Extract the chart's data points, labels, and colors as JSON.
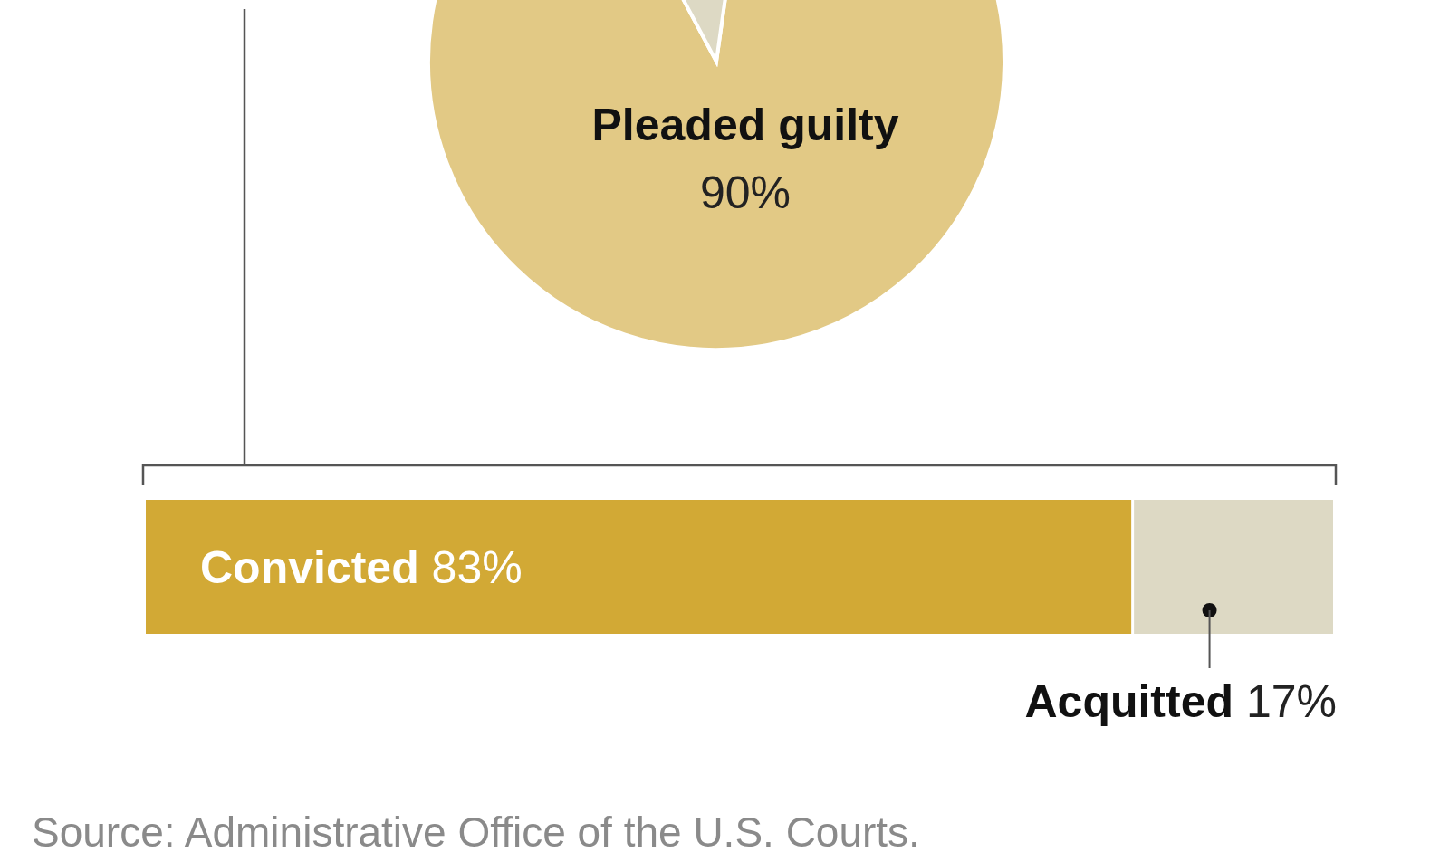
{
  "chart_data": [
    {
      "type": "pie",
      "categories": [
        "Pleaded guilty",
        null
      ],
      "values": [
        90,
        10
      ],
      "colors": [
        "#e2c985",
        "#ddd9c4"
      ],
      "value_labels": [
        "90%",
        null
      ]
    },
    {
      "type": "bar",
      "orientation": "horizontal",
      "stacked": true,
      "categories": [
        null
      ],
      "xlim": [
        0,
        100
      ],
      "series": [
        {
          "name": "Convicted",
          "color": "#d2a935",
          "values": [
            83
          ],
          "value_labels": [
            "83%"
          ]
        },
        {
          "name": "Acquitted",
          "color": "#ddd9c4",
          "values": [
            17
          ],
          "value_labels": [
            "17%"
          ]
        }
      ],
      "annotations": [
        "Source: Administrative Office of the U.S. Courts."
      ]
    }
  ]
}
